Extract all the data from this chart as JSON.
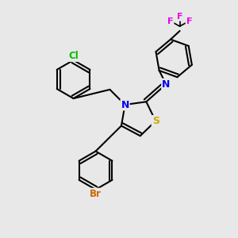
{
  "background_color": "#e8e8e8",
  "atom_colors": {
    "S": "#ccaa00",
    "N": "#0000ee",
    "Cl": "#00bb00",
    "Br": "#cc6600",
    "F": "#ee00ee",
    "C": "#000000"
  },
  "bond_color": "#000000",
  "bond_width": 1.5
}
